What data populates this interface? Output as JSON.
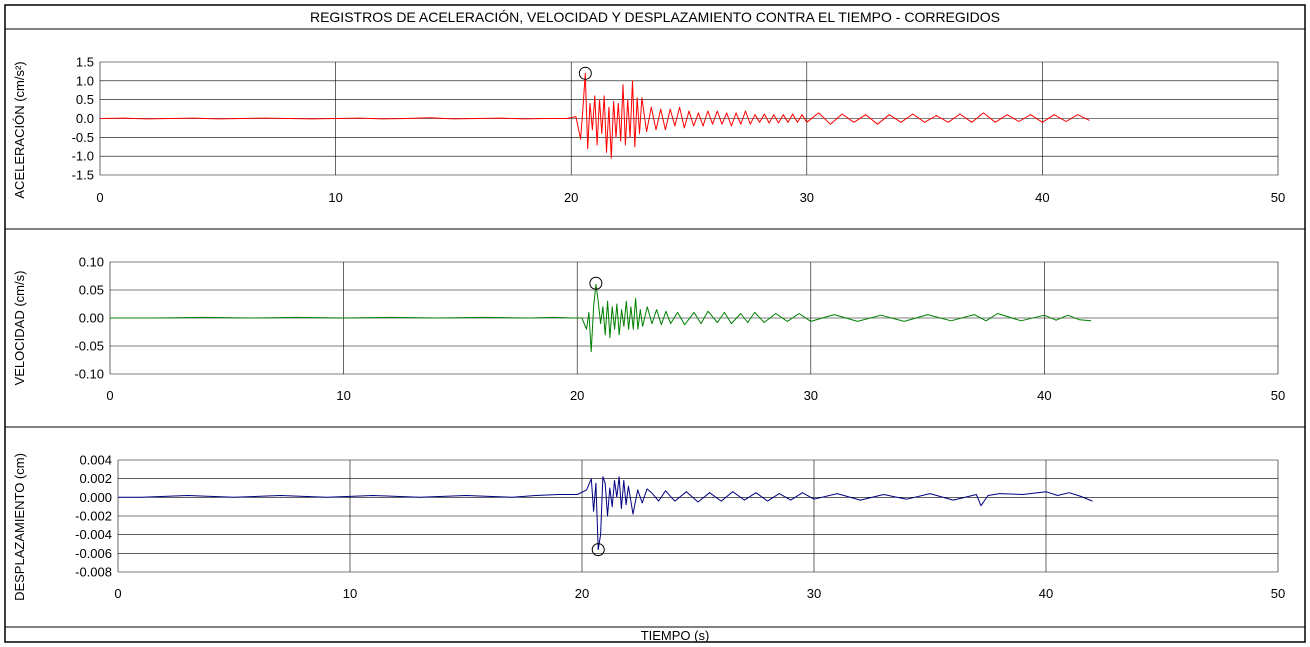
{
  "figure_title": "REGISTROS DE ACELERACIÓN, VELOCIDAD Y DESPLAZAMIENTO CONTRA EL TIEMPO - CORREGIDOS",
  "x_axis_label": "TIEMPO (s)",
  "chart_data": [
    {
      "type": "line",
      "ylabel": "ACELERACIÓN (cm/s²)",
      "color": "#ff0000",
      "xlim": [
        0,
        50
      ],
      "ylim": [
        -1.5,
        1.5
      ],
      "x_ticks": [
        0,
        10,
        20,
        30,
        40,
        50
      ],
      "x_tick_labels": [
        "0",
        "10",
        "20",
        "30",
        "40",
        "50"
      ],
      "y_ticks": [
        1.5,
        1.0,
        0.5,
        0.0,
        -0.5,
        -1.0,
        -1.5
      ],
      "y_tick_labels": [
        "1.5",
        "1.0",
        "0.5",
        "0.0",
        "-0.5",
        "-1.0",
        "-1.5"
      ],
      "grid": true,
      "marker": {
        "x": 20.6,
        "y": 1.2
      },
      "series": [
        {
          "x": [
            0,
            1,
            2,
            3,
            4,
            5,
            6,
            7,
            8,
            9,
            10,
            11,
            12,
            13,
            14,
            15,
            16,
            17,
            18,
            19,
            19.8,
            20.2,
            20.4,
            20.5,
            20.6,
            20.7,
            20.8,
            20.9,
            21.0,
            21.1,
            21.2,
            21.3,
            21.4,
            21.5,
            21.6,
            21.7,
            21.8,
            21.9,
            22.0,
            22.1,
            22.2,
            22.3,
            22.4,
            22.5,
            22.6,
            22.7,
            22.8,
            22.9,
            23.0,
            23.2,
            23.4,
            23.6,
            23.8,
            24.0,
            24.2,
            24.4,
            24.6,
            24.8,
            25.0,
            25.2,
            25.4,
            25.6,
            25.8,
            26.0,
            26.2,
            26.4,
            26.6,
            26.8,
            27.0,
            27.2,
            27.4,
            27.6,
            27.8,
            28.0,
            28.2,
            28.4,
            28.6,
            28.8,
            29.0,
            29.2,
            29.4,
            29.6,
            29.8,
            30.0,
            30.5,
            31.0,
            31.5,
            32.0,
            32.5,
            33.0,
            33.5,
            34.0,
            34.5,
            35.0,
            35.5,
            36.0,
            36.5,
            37.0,
            37.5,
            38.0,
            38.5,
            39.0,
            39.5,
            40.0,
            40.5,
            41.0,
            41.5,
            42.0
          ],
          "y": [
            0.0,
            0.01,
            -0.01,
            0.0,
            0.01,
            -0.01,
            0.0,
            0.01,
            0.0,
            -0.01,
            0.0,
            0.01,
            -0.01,
            0.0,
            0.02,
            -0.01,
            0.0,
            0.01,
            -0.01,
            0.0,
            0.0,
            0.05,
            -0.55,
            0.3,
            1.2,
            -0.8,
            0.4,
            -0.3,
            0.6,
            -0.7,
            0.5,
            -0.4,
            0.6,
            -0.9,
            0.3,
            -1.05,
            0.45,
            -0.5,
            0.4,
            -0.6,
            0.9,
            -0.7,
            0.5,
            -0.5,
            1.0,
            -0.75,
            0.55,
            -0.4,
            0.55,
            -0.35,
            0.3,
            -0.3,
            0.25,
            -0.3,
            0.25,
            -0.2,
            0.3,
            -0.25,
            0.2,
            -0.2,
            0.15,
            -0.2,
            0.2,
            -0.15,
            0.2,
            -0.15,
            0.15,
            -0.2,
            0.15,
            -0.15,
            0.2,
            -0.15,
            0.1,
            -0.1,
            0.12,
            -0.12,
            0.1,
            -0.12,
            0.1,
            -0.1,
            0.12,
            -0.1,
            0.1,
            -0.1,
            0.15,
            -0.15,
            0.12,
            -0.1,
            0.1,
            -0.15,
            0.1,
            -0.1,
            0.12,
            -0.1,
            0.08,
            -0.1,
            0.12,
            -0.1,
            0.15,
            -0.1,
            0.1,
            -0.08,
            0.1,
            -0.1,
            0.1,
            -0.08,
            0.1,
            -0.05
          ]
        }
      ]
    },
    {
      "type": "line",
      "ylabel": "VELOCIDAD (cm/s)",
      "color": "#008000",
      "xlim": [
        0,
        50
      ],
      "ylim": [
        -0.1,
        0.1
      ],
      "x_ticks": [
        0,
        10,
        20,
        30,
        40,
        50
      ],
      "x_tick_labels": [
        "0",
        "10",
        "20",
        "30",
        "40",
        "50"
      ],
      "y_ticks": [
        0.1,
        0.05,
        0.0,
        -0.05,
        -0.1
      ],
      "y_tick_labels": [
        "0.10",
        "0.05",
        "0.00",
        "-0.05",
        "-0.10"
      ],
      "grid": true,
      "marker": {
        "x": 20.8,
        "y": 0.062
      },
      "series": [
        {
          "x": [
            0,
            2,
            4,
            6,
            8,
            10,
            12,
            14,
            16,
            18,
            19,
            19.8,
            20.2,
            20.4,
            20.5,
            20.6,
            20.7,
            20.8,
            20.9,
            21.0,
            21.1,
            21.2,
            21.3,
            21.4,
            21.5,
            21.6,
            21.7,
            21.8,
            21.9,
            22.0,
            22.1,
            22.2,
            22.3,
            22.4,
            22.5,
            22.6,
            22.7,
            22.8,
            23.0,
            23.2,
            23.4,
            23.6,
            23.8,
            24.0,
            24.3,
            24.6,
            25.0,
            25.3,
            25.6,
            26.0,
            26.3,
            26.6,
            27.0,
            27.3,
            27.6,
            28.0,
            28.5,
            29.0,
            29.5,
            30.0,
            31.0,
            32.0,
            33.0,
            34.0,
            35.0,
            36.0,
            37.0,
            37.5,
            38.0,
            39.0,
            40.0,
            40.5,
            41.0,
            41.5,
            42.0
          ],
          "y": [
            0.0,
            0.0,
            0.001,
            0.0,
            0.001,
            0.0,
            0.001,
            0.0,
            0.001,
            0.0,
            0.001,
            0.0,
            0.0,
            -0.02,
            0.01,
            -0.06,
            0.02,
            0.06,
            0.03,
            -0.01,
            0.02,
            -0.03,
            0.03,
            -0.035,
            0.02,
            -0.02,
            0.025,
            -0.03,
            0.015,
            -0.015,
            0.03,
            -0.02,
            0.02,
            -0.02,
            0.035,
            -0.02,
            0.015,
            -0.015,
            0.02,
            -0.01,
            0.015,
            -0.012,
            0.012,
            -0.01,
            0.01,
            -0.012,
            0.01,
            -0.01,
            0.012,
            -0.008,
            0.01,
            -0.01,
            0.008,
            -0.008,
            0.01,
            -0.008,
            0.008,
            -0.006,
            0.008,
            -0.006,
            0.006,
            -0.006,
            0.005,
            -0.006,
            0.006,
            -0.005,
            0.006,
            -0.005,
            0.008,
            -0.005,
            0.005,
            -0.004,
            0.005,
            -0.003,
            -0.005
          ]
        }
      ]
    },
    {
      "type": "line",
      "ylabel": "DESPLAZAMIENTO (cm)",
      "color": "#000080",
      "xlim": [
        0,
        50
      ],
      "ylim": [
        -0.008,
        0.004
      ],
      "x_ticks": [
        0,
        10,
        20,
        30,
        40,
        50
      ],
      "x_tick_labels": [
        "0",
        "10",
        "20",
        "30",
        "40",
        "50"
      ],
      "y_ticks": [
        0.004,
        0.002,
        0.0,
        -0.002,
        -0.004,
        -0.006,
        -0.008
      ],
      "y_tick_labels": [
        "0.004",
        "0.002",
        "0.000",
        "-0.002",
        "-0.004",
        "-0.006",
        "-0.008"
      ],
      "grid": true,
      "marker": {
        "x": 20.7,
        "y": -0.0056
      },
      "series": [
        {
          "x": [
            0,
            1,
            2,
            3,
            4,
            5,
            6,
            7,
            8,
            9,
            10,
            11,
            12,
            13,
            14,
            15,
            16,
            17,
            18,
            19,
            19.8,
            20.2,
            20.4,
            20.5,
            20.6,
            20.7,
            20.8,
            20.9,
            21.0,
            21.1,
            21.2,
            21.3,
            21.4,
            21.5,
            21.6,
            21.7,
            21.8,
            21.9,
            22.0,
            22.2,
            22.4,
            22.6,
            22.8,
            23.0,
            23.3,
            23.6,
            24.0,
            24.5,
            25.0,
            25.5,
            26.0,
            26.5,
            27.0,
            27.5,
            28.0,
            28.5,
            29.0,
            29.5,
            30.0,
            31.0,
            32.0,
            33.0,
            34.0,
            35.0,
            36.0,
            37.0,
            37.2,
            37.5,
            38.0,
            39.0,
            40.0,
            40.5,
            41.0,
            41.5,
            42.0
          ],
          "y": [
            0.0,
            0.0,
            0.0001,
            0.0002,
            0.0001,
            0.0,
            0.0001,
            0.0002,
            0.0001,
            0.0,
            0.0001,
            0.0002,
            0.0001,
            0.0,
            0.0001,
            0.0002,
            0.0001,
            0.0,
            0.0002,
            0.0003,
            0.0003,
            0.0008,
            0.002,
            -0.0015,
            0.0015,
            -0.0056,
            -0.004,
            0.0022,
            0.0015,
            -0.002,
            0.001,
            -0.001,
            0.0018,
            0.0,
            0.0022,
            -0.0012,
            0.0018,
            -0.0008,
            0.0012,
            -0.0018,
            0.0008,
            -0.0006,
            0.0009,
            0.0005,
            -0.0004,
            0.0007,
            -0.0004,
            0.0006,
            -0.0005,
            0.0005,
            -0.0004,
            0.0006,
            -0.0003,
            0.0005,
            -0.0004,
            0.0004,
            -0.0003,
            0.0005,
            -0.0002,
            0.0004,
            -0.0003,
            0.0003,
            -0.0002,
            0.0004,
            -0.0003,
            0.0003,
            -0.0009,
            0.0002,
            0.0004,
            0.0003,
            0.0006,
            0.0002,
            0.0005,
            0.0001,
            -0.0004
          ]
        }
      ]
    }
  ]
}
